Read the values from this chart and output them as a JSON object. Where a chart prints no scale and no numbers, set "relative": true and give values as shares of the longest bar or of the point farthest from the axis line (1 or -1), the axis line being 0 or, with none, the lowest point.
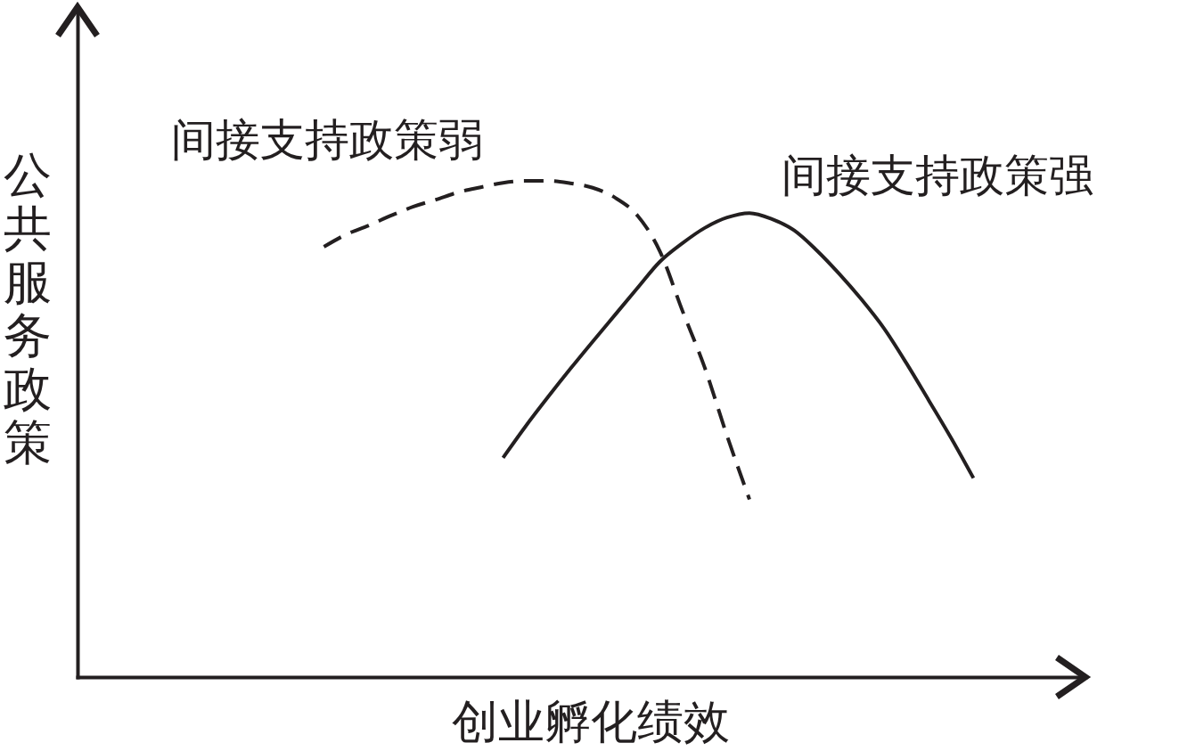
{
  "chart_data": {
    "type": "line",
    "relative": true,
    "xlabel": "创业孵化绩效",
    "ylabel": "公共服务政策",
    "tick_labels": false,
    "categories": [
      null,
      null,
      null,
      null,
      null,
      null,
      null,
      null,
      null,
      null,
      null,
      null,
      null,
      null,
      null,
      null,
      null,
      null,
      null,
      null,
      null,
      null,
      null,
      null,
      null,
      null,
      null,
      null,
      null,
      null,
      null,
      null,
      null,
      null,
      null,
      null,
      null,
      null,
      null,
      null,
      null,
      null,
      null,
      null,
      null,
      null
    ],
    "series": [
      {
        "name": "间接支持政策弱",
        "color": "#231f20",
        "line_style": "dashed",
        "values": [
          null,
          null,
          null,
          null,
          null,
          null,
          null,
          null,
          null,
          null,
          null,
          0.867,
          0.892,
          0.91,
          0.93,
          0.948,
          0.962,
          0.977,
          0.987,
          0.996,
          1,
          1,
          0.995,
          0.986,
          0.966,
          0.93,
          0.858,
          0.739,
          0.624,
          0.486,
          0.358,
          null,
          null,
          null,
          null,
          null,
          null,
          null,
          null,
          null,
          null,
          null,
          null,
          null,
          null,
          null
        ]
      },
      {
        "name": "间接支持政策强",
        "color": "#231f20",
        "line_style": "solid",
        "values": [
          null,
          null,
          null,
          null,
          null,
          null,
          null,
          null,
          null,
          null,
          null,
          null,
          null,
          null,
          null,
          null,
          null,
          null,
          null,
          0.442,
          0.505,
          0.564,
          0.621,
          0.676,
          0.73,
          0.784,
          0.837,
          0.874,
          0.905,
          0.926,
          0.935,
          0.923,
          0.9,
          0.86,
          0.813,
          0.761,
          0.703,
          0.633,
          0.558,
          0.482,
          0.401,
          null,
          null,
          null,
          null,
          null
        ]
      }
    ]
  }
}
